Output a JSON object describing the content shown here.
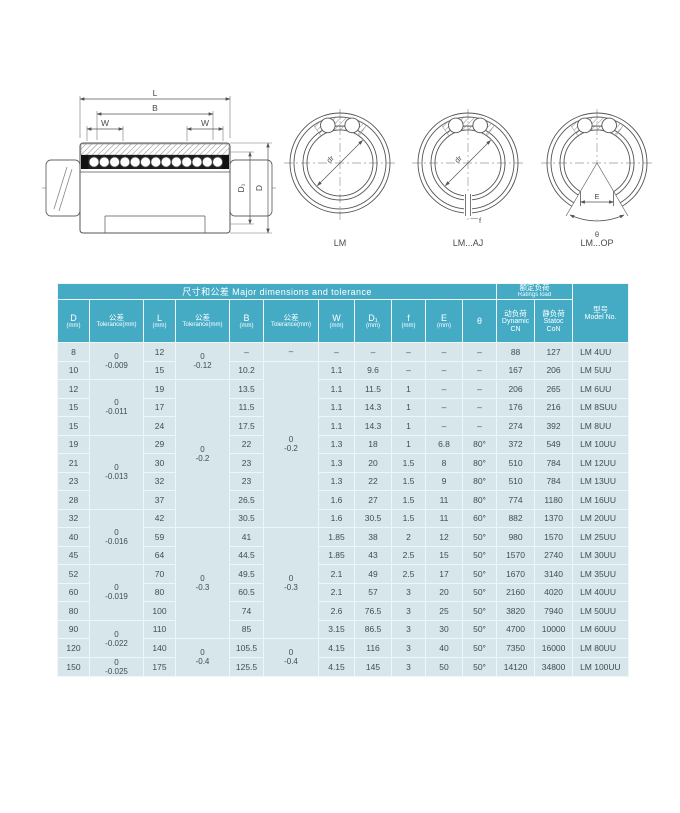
{
  "colors": {
    "header_bg": "#45abc5",
    "row_bg": "#d7e6ea",
    "row_text": "#3e4e56"
  },
  "diagram": {
    "left": {
      "dim_l": "L",
      "dim_b": "B",
      "dim_w1": "W",
      "dim_w2": "W",
      "dim_d1": "D₁",
      "dim_d": "D"
    },
    "sections": [
      {
        "caption": "LM",
        "bore_label": "dr"
      },
      {
        "caption": "LM...AJ",
        "bore_label": "dr",
        "slot_label": "f"
      },
      {
        "caption": "LM...OP",
        "bore_label": "dr",
        "gap_label": "E",
        "angle_label": "θ"
      }
    ]
  },
  "table": {
    "group_title": "尺寸和公差  Major dimensions and tolerance",
    "ratings_title_cn": "额定负荷",
    "ratings_title_en": "Ratings  load",
    "model_header_cn": "型号",
    "model_header_en": "Model No.",
    "columns": [
      {
        "lines": [
          "D",
          "(mm)"
        ],
        "type": "main"
      },
      {
        "lines": [
          "公差",
          "Tolerance(mm)"
        ],
        "type": "tol"
      },
      {
        "lines": [
          "L",
          "(mm)"
        ],
        "type": "main"
      },
      {
        "lines": [
          "公差",
          "Tolerance(mm)"
        ],
        "type": "tol"
      },
      {
        "lines": [
          "B",
          "(mm)"
        ],
        "type": "main"
      },
      {
        "lines": [
          "公差",
          "Tolerance(mm)"
        ],
        "type": "tol"
      },
      {
        "lines": [
          "W",
          "(mm)"
        ],
        "type": "main"
      },
      {
        "lines": [
          "D₁",
          "(mm)"
        ],
        "type": "main"
      },
      {
        "lines": [
          "f",
          "(mm)"
        ],
        "type": "main"
      },
      {
        "lines": [
          "E",
          "(mm)"
        ],
        "type": "main"
      },
      {
        "lines": [
          "θ"
        ],
        "type": "main"
      },
      {
        "lines": [
          "动负荷",
          "Dynamic",
          "CN"
        ],
        "type": "load"
      },
      {
        "lines": [
          "静负荷",
          "Statoc",
          "CoN"
        ],
        "type": "load"
      }
    ],
    "tol_d_groups": [
      {
        "start": 0,
        "span": 2,
        "lines": [
          "0",
          "-0.009"
        ]
      },
      {
        "start": 2,
        "span": 3,
        "lines": [
          "0",
          "-0.011"
        ]
      },
      {
        "start": 5,
        "span": 4,
        "lines": [
          "0",
          "-0.013"
        ]
      },
      {
        "start": 9,
        "span": 3,
        "lines": [
          "0",
          "-0.016"
        ]
      },
      {
        "start": 12,
        "span": 3,
        "lines": [
          "0",
          "-0.019"
        ]
      },
      {
        "start": 15,
        "span": 2,
        "lines": [
          "0",
          "-0.022"
        ]
      },
      {
        "start": 17,
        "span": 1,
        "lines": [
          "0",
          "-0.025"
        ]
      }
    ],
    "tol_l_groups": [
      {
        "start": 0,
        "span": 2,
        "lines": [
          "0",
          "-0.12"
        ]
      },
      {
        "start": 2,
        "span": 8,
        "lines": [
          "0",
          "-0.2"
        ]
      },
      {
        "start": 10,
        "span": 6,
        "lines": [
          "0",
          "-0.3"
        ]
      },
      {
        "start": 16,
        "span": 2,
        "lines": [
          "0",
          "-0.4"
        ]
      }
    ],
    "tol_b_groups": [
      {
        "start": 0,
        "span": 1,
        "lines": [
          "–"
        ]
      },
      {
        "start": 1,
        "span": 9,
        "lines": [
          "0",
          "-0.2"
        ]
      },
      {
        "start": 10,
        "span": 6,
        "lines": [
          "0",
          "-0.3"
        ]
      },
      {
        "start": 16,
        "span": 2,
        "lines": [
          "0",
          "-0.4"
        ]
      }
    ],
    "row_keys": [
      "d",
      "l",
      "b",
      "w",
      "d1",
      "f",
      "e",
      "theta",
      "cn",
      "con",
      "model"
    ],
    "rows": [
      [
        "8",
        "12",
        "–",
        "–",
        "–",
        "–",
        "–",
        "–",
        "88",
        "127",
        "LM 4UU"
      ],
      [
        "10",
        "15",
        "10.2",
        "1.1",
        "9.6",
        "–",
        "–",
        "–",
        "167",
        "206",
        "LM 5UU"
      ],
      [
        "12",
        "19",
        "13.5",
        "1.1",
        "11.5",
        "1",
        "–",
        "–",
        "206",
        "265",
        "LM 6UU"
      ],
      [
        "15",
        "17",
        "11.5",
        "1.1",
        "14.3",
        "1",
        "–",
        "–",
        "176",
        "216",
        "LM 8SUU"
      ],
      [
        "15",
        "24",
        "17.5",
        "1.1",
        "14.3",
        "1",
        "–",
        "–",
        "274",
        "392",
        "LM 8UU"
      ],
      [
        "19",
        "29",
        "22",
        "1.3",
        "18",
        "1",
        "6.8",
        "80°",
        "372",
        "549",
        "LM 10UU"
      ],
      [
        "21",
        "30",
        "23",
        "1.3",
        "20",
        "1.5",
        "8",
        "80°",
        "510",
        "784",
        "LM 12UU"
      ],
      [
        "23",
        "32",
        "23",
        "1.3",
        "22",
        "1.5",
        "9",
        "80°",
        "510",
        "784",
        "LM 13UU"
      ],
      [
        "28",
        "37",
        "26.5",
        "1.6",
        "27",
        "1.5",
        "11",
        "80°",
        "774",
        "1180",
        "LM 16UU"
      ],
      [
        "32",
        "42",
        "30.5",
        "1.6",
        "30.5",
        "1.5",
        "11",
        "60°",
        "882",
        "1370",
        "LM 20UU"
      ],
      [
        "40",
        "59",
        "41",
        "1.85",
        "38",
        "2",
        "12",
        "50°",
        "980",
        "1570",
        "LM 25UU"
      ],
      [
        "45",
        "64",
        "44.5",
        "1.85",
        "43",
        "2.5",
        "15",
        "50°",
        "1570",
        "2740",
        "LM 30UU"
      ],
      [
        "52",
        "70",
        "49.5",
        "2.1",
        "49",
        "2.5",
        "17",
        "50°",
        "1670",
        "3140",
        "LM 35UU"
      ],
      [
        "60",
        "80",
        "60.5",
        "2.1",
        "57",
        "3",
        "20",
        "50°",
        "2160",
        "4020",
        "LM 40UU"
      ],
      [
        "80",
        "100",
        "74",
        "2.6",
        "76.5",
        "3",
        "25",
        "50°",
        "3820",
        "7940",
        "LM 50UU"
      ],
      [
        "90",
        "110",
        "85",
        "3.15",
        "86.5",
        "3",
        "30",
        "50°",
        "4700",
        "10000",
        "LM 60UU"
      ],
      [
        "120",
        "140",
        "105.5",
        "4.15",
        "116",
        "3",
        "40",
        "50°",
        "7350",
        "16000",
        "LM 80UU"
      ],
      [
        "150",
        "175",
        "125.5",
        "4.15",
        "145",
        "3",
        "50",
        "50°",
        "14120",
        "34800",
        "LM 100UU"
      ]
    ]
  }
}
